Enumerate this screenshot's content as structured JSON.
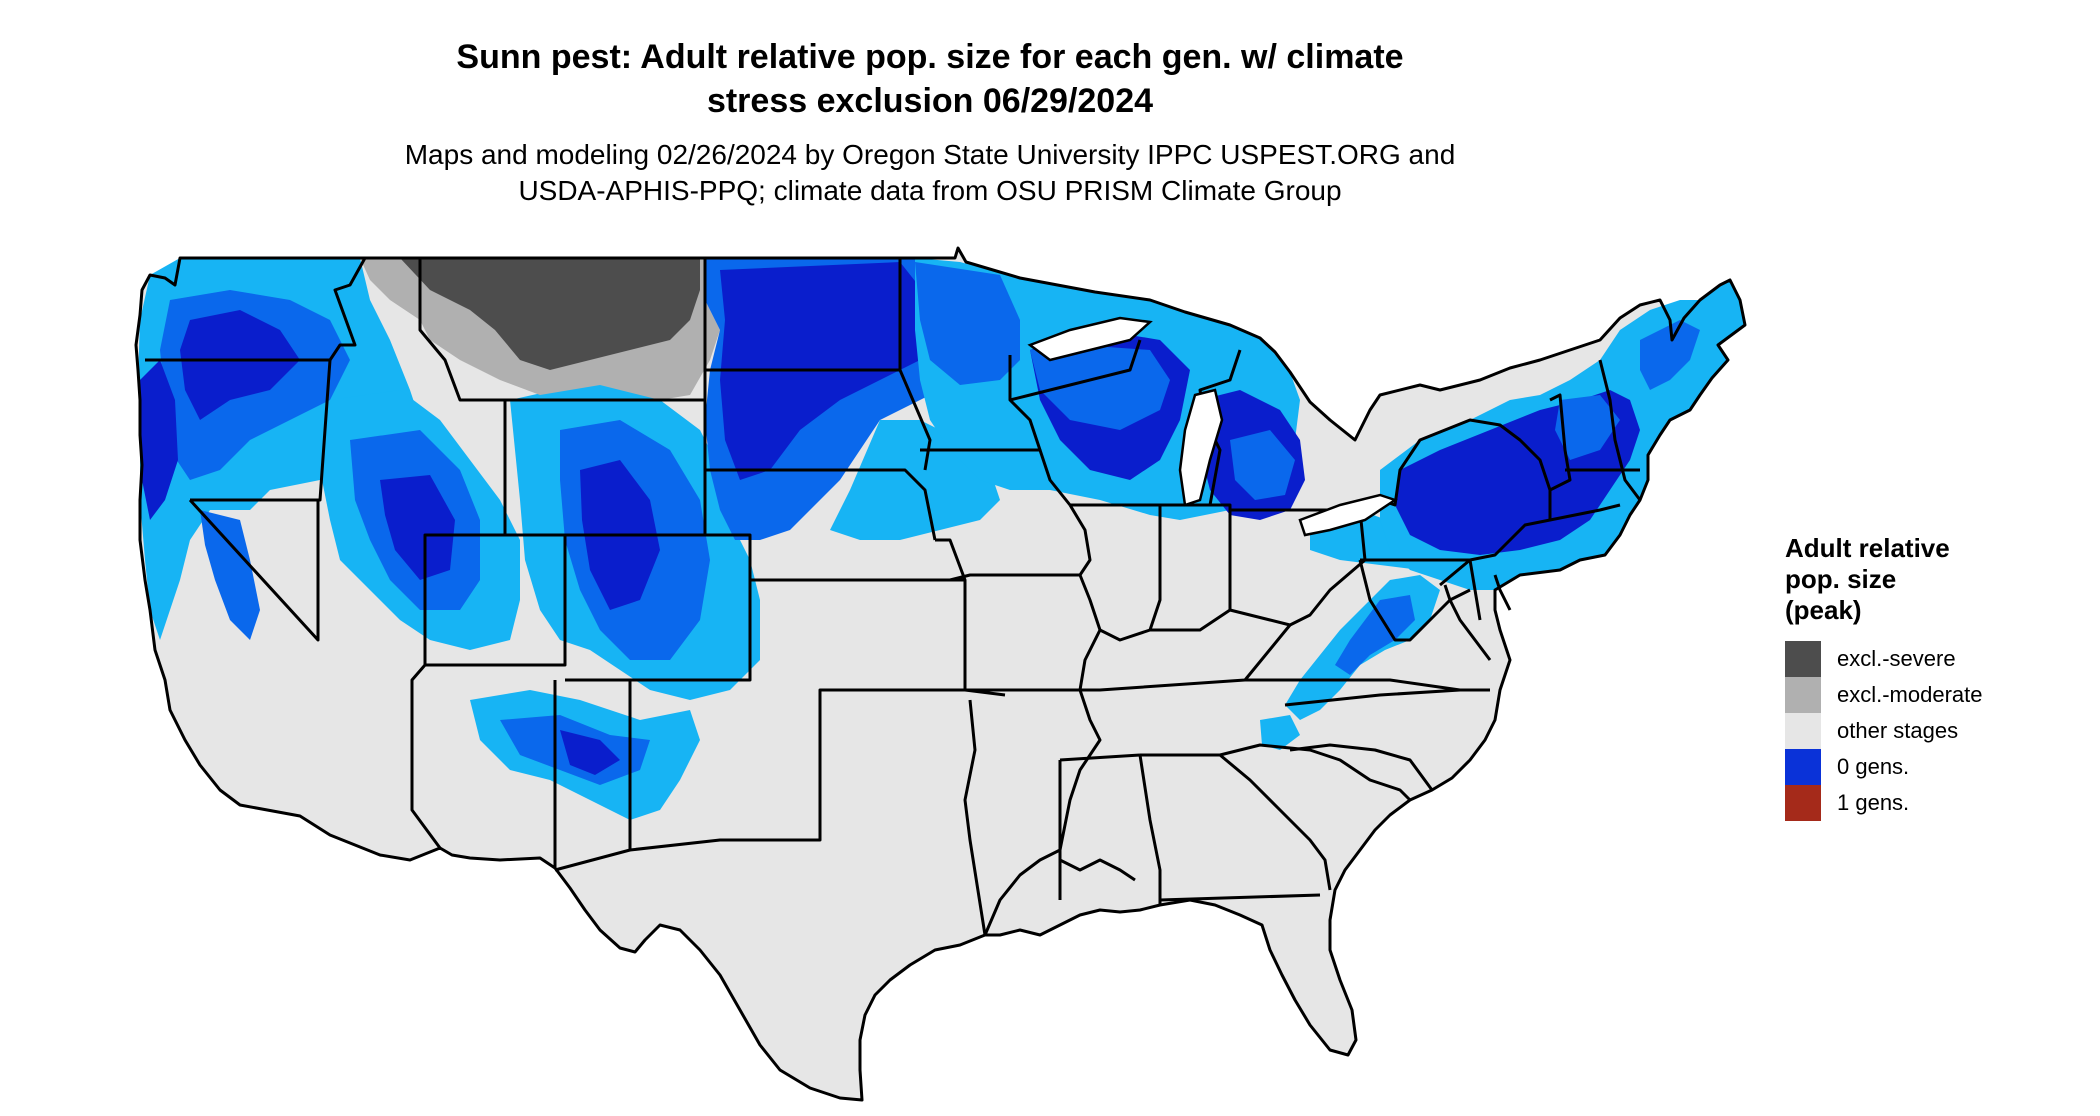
{
  "title": {
    "line1": "Sunn pest: Adult relative pop. size for each gen. w/ climate",
    "line2": "stress exclusion 06/29/2024"
  },
  "subtitle": {
    "line1": "Maps and modeling 02/26/2024 by Oregon State University IPPC USPEST.ORG and",
    "line2": "USDA-APHIS-PPQ; climate data from OSU PRISM Climate Group"
  },
  "legend": {
    "title_lines": [
      "Adult relative",
      "pop. size",
      "(peak)"
    ],
    "items": [
      {
        "label": "excl.-severe",
        "color": "#4d4d4d"
      },
      {
        "label": "excl.-moderate",
        "color": "#b0b0b0"
      },
      {
        "label": "other stages",
        "color": "#e6e6e6"
      },
      {
        "label": "0 gens.",
        "color": "#0a32d8"
      },
      {
        "label": "1 gens.",
        "color": "#a52a1a"
      }
    ]
  },
  "map_colors": {
    "base": "#e6e6e6",
    "light_blue": "#17b4f4",
    "mid_blue": "#0a68ec",
    "dark_blue": "#0a1ecc",
    "excl_severe": "#4d4d4d",
    "excl_moderate": "#b0b0b0",
    "border": "#000000"
  }
}
